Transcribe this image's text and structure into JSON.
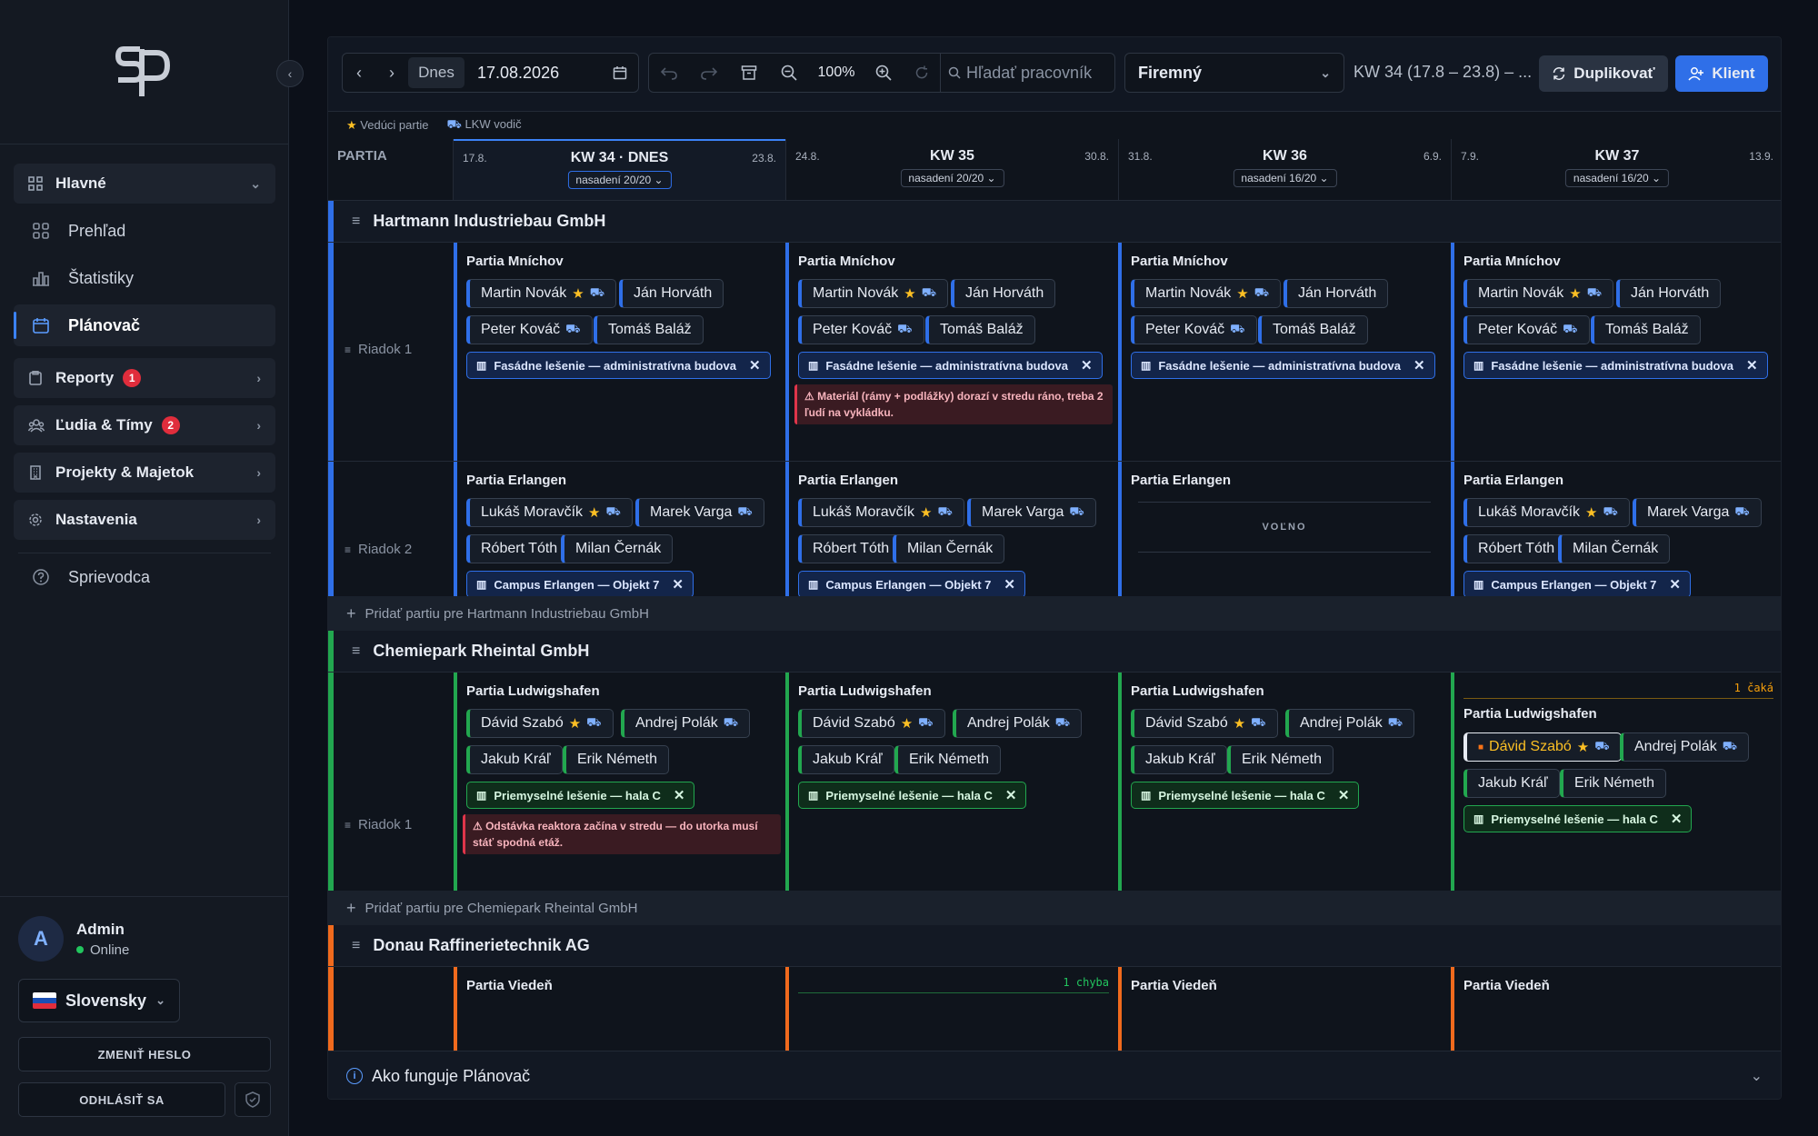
{
  "sidebar": {
    "sections": [
      {
        "label": "Hlavné",
        "icon": "grid-icon"
      },
      {
        "label": "Reporty",
        "badge": "1"
      },
      {
        "label": "Ľudia & Tímy",
        "badge": "2"
      },
      {
        "label": "Projekty & Majetok"
      },
      {
        "label": "Nastavenia"
      }
    ],
    "items": [
      {
        "label": "Prehľad"
      },
      {
        "label": "Štatistiky"
      },
      {
        "label": "Plánovač"
      },
      {
        "label": "Sprievodca"
      }
    ],
    "user": {
      "initial": "A",
      "name": "Admin",
      "status": "Online"
    },
    "language": "Slovensky",
    "change_password": "ZMENIŤ HESLO",
    "logout": "ODHLÁSIŤ SA"
  },
  "toolbar": {
    "today": "Dnes",
    "date": "17.08.2026",
    "zoom": "100%",
    "search_placeholder": "Hľadať pracovník",
    "view_select": "Firemný",
    "range": "KW 34 (17.8 – 23.8) – ...",
    "duplicate": "Duplikovať",
    "client": "Klient"
  },
  "legend": {
    "leader": "Vedúci partie",
    "driver": "LKW vodič"
  },
  "grid_header": {
    "col_label": "PARTIA",
    "weeks": [
      {
        "start": "17.8.",
        "title": "KW 34 · DNES",
        "end": "23.8.",
        "deployed": "nasadení 20/20"
      },
      {
        "start": "24.8.",
        "title": "KW 35",
        "end": "30.8.",
        "deployed": "nasadení 20/20"
      },
      {
        "start": "31.8.",
        "title": "KW 36",
        "end": "6.9.",
        "deployed": "nasadení 16/20"
      },
      {
        "start": "7.9.",
        "title": "KW 37",
        "end": "13.9.",
        "deployed": "nasadení 16/20"
      }
    ]
  },
  "clients": [
    {
      "name": "Hartmann Industriebau GmbH",
      "add_label": "Pridať partiu pre Hartmann Industriebau GmbH",
      "rows": [
        "Riadok 1",
        "Riadok 2"
      ]
    },
    {
      "name": "Chemiepark Rheintal GmbH",
      "add_label": "Pridať partiu pre Chemiepark Rheintal GmbH",
      "rows": [
        "Riadok 1"
      ]
    },
    {
      "name": "Donau Raffinerietechnik AG",
      "rows": []
    }
  ],
  "teams": {
    "munich": {
      "name": "Partia Mníchov",
      "members": [
        "Martin Novák",
        "Ján Horváth",
        "Peter Kováč",
        "Tomáš Baláž"
      ],
      "project": "Fasádne lešenie — administratívna budova",
      "warning": "⚠ Materiál (rámy + podlážky) dorazí v stredu ráno, treba 2 ľudí na vykládku."
    },
    "erlangen": {
      "name": "Partia Erlangen",
      "members": [
        "Lukáš Moravčík",
        "Marek Varga",
        "Róbert Tóth",
        "Milan Černák"
      ],
      "project": "Campus Erlangen — Objekt 7",
      "free": "VOĽNO"
    },
    "ludwigshafen": {
      "name": "Partia Ludwigshafen",
      "members": [
        "Dávid Szabó",
        "Andrej Polák",
        "Jakub Kráľ",
        "Erik Németh"
      ],
      "project": "Priemyselné lešenie — hala C",
      "warning": "⚠ Odstávka reaktora začína v stredu — do utorka musí stáť spodná etáž.",
      "pending": "1 čaká"
    },
    "vienna": {
      "name": "Partia Viedeň",
      "error": "1 chyba"
    }
  },
  "footer": {
    "label": "Ako funguje Plánovač"
  },
  "colors": {
    "accent": "#2f6fe8",
    "hartmann": "#2f6fe8",
    "chemie": "#22a74f",
    "donau": "#f06a1d",
    "warning": "#e0354a",
    "star": "#fbbf24"
  }
}
